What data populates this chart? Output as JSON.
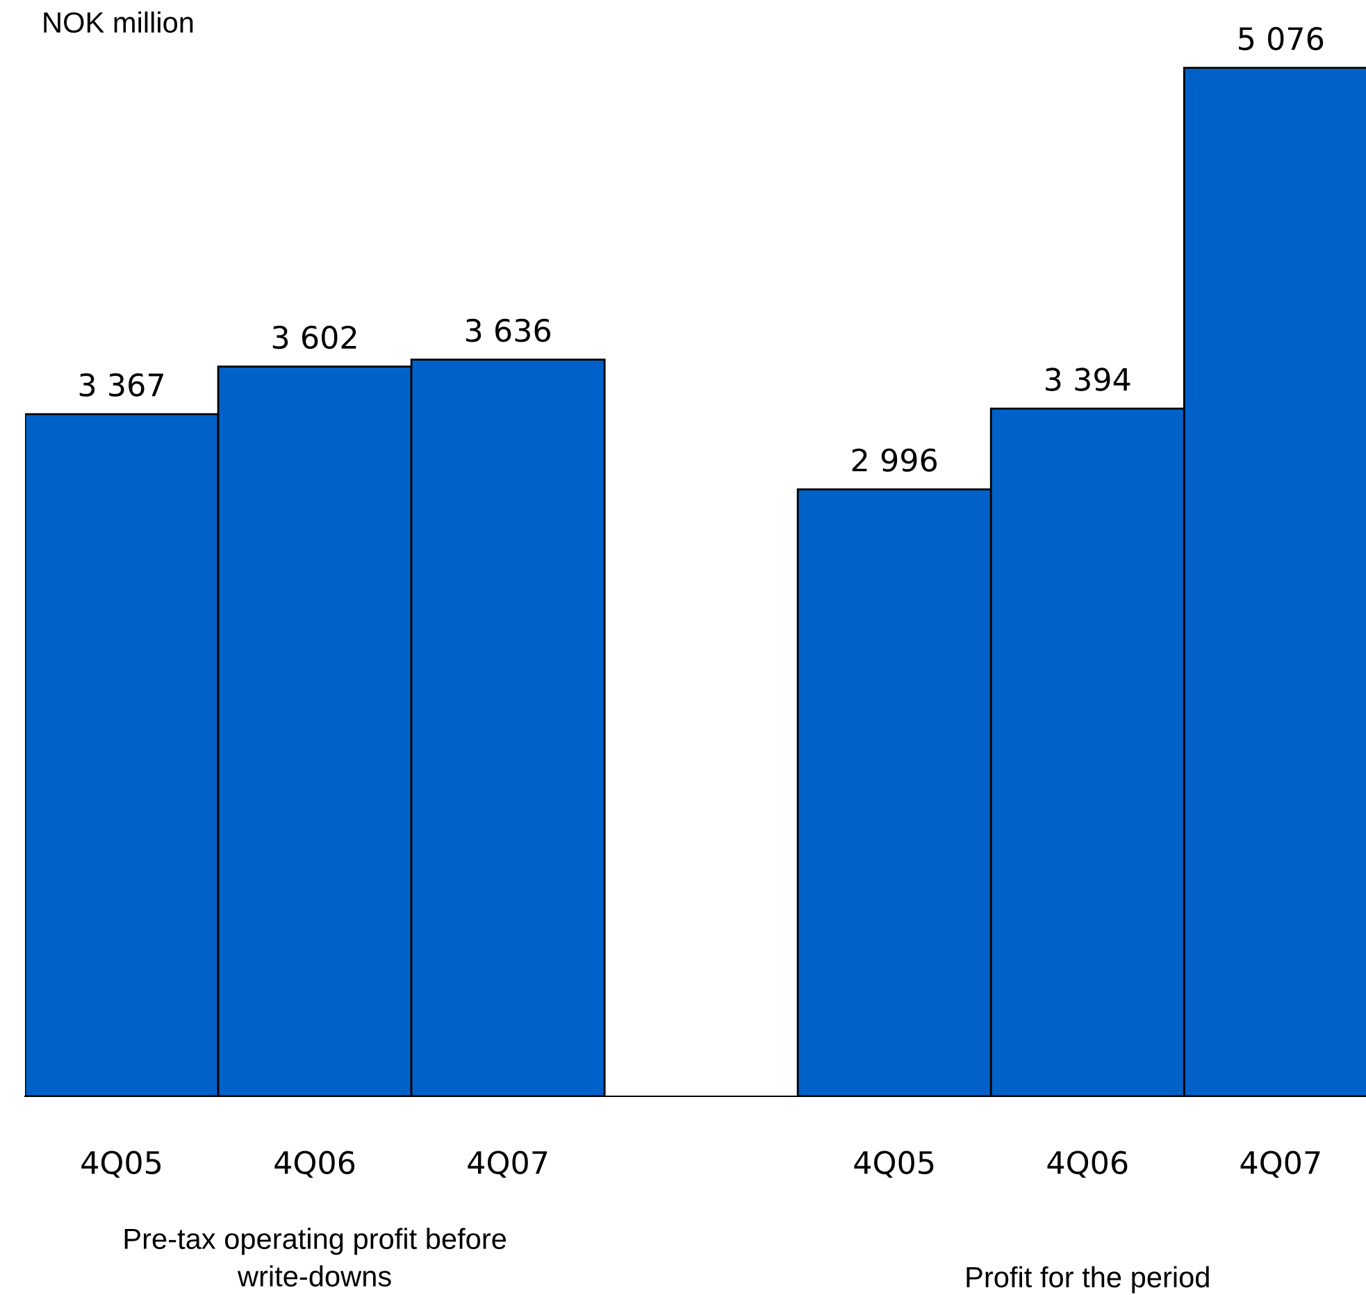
{
  "chart_data": {
    "type": "bar",
    "ylabel": "NOK million",
    "categories": [
      "4Q05",
      "4Q06",
      "4Q07",
      null,
      "4Q05",
      "4Q06",
      "4Q07"
    ],
    "values": [
      3367,
      3602,
      3636,
      null,
      2996,
      3394,
      5076
    ],
    "value_labels": [
      "3 367",
      "3 602",
      "3 636",
      null,
      "2 996",
      "3 394",
      "5 076"
    ],
    "color": "#0062c8",
    "annotations": [
      "Pre-tax operating profit before\nwrite-downs",
      "Profit for the period"
    ],
    "tick_labels": "x",
    "grid": false,
    "legend": false
  }
}
